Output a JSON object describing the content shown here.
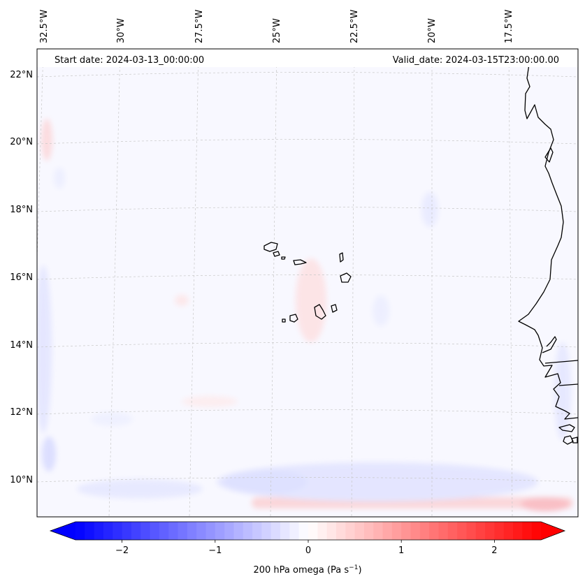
{
  "map": {
    "start_date": "Start date: 2024-03-13_00:00:00",
    "valid_date": "Valid_date: 2024-03-15T23:00:00.00",
    "lon_labels": [
      "32.5°W",
      "30°W",
      "27.5°W",
      "25°W",
      "22.5°W",
      "20°W",
      "17.5°W"
    ],
    "lat_labels": [
      "22°N",
      "20°N",
      "18°N",
      "16°N",
      "14°N",
      "12°N",
      "10°N"
    ],
    "colors": {
      "negative": "#0000ff",
      "neutral": "#ffffff",
      "positive": "#ff0000",
      "coastline": "#000000",
      "gridline": "#bbbbbb"
    }
  },
  "colorbar": {
    "label_main": "200 hPa omega (Pa s",
    "label_exp": "−1",
    "label_close": ")",
    "range": [
      -2.5,
      2.5
    ],
    "ticks": [
      {
        "value": -2,
        "label": "−2"
      },
      {
        "value": -1,
        "label": "−1"
      },
      {
        "value": 0,
        "label": "0"
      },
      {
        "value": 1,
        "label": "1"
      },
      {
        "value": 2,
        "label": "2"
      }
    ],
    "levels": 50
  }
}
